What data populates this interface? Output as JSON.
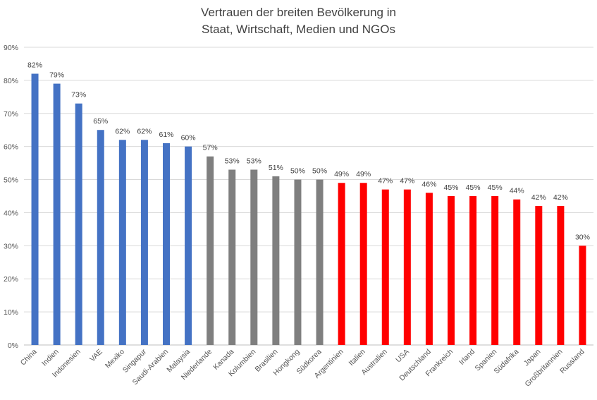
{
  "chart_data": {
    "type": "bar",
    "title_lines": [
      "Vertrauen der breiten Bevölkerung in",
      "Staat, Wirtschaft, Medien und NGOs"
    ],
    "xlabel": "",
    "ylabel": "",
    "ylim": [
      0,
      90
    ],
    "yticks": [
      0,
      10,
      20,
      30,
      40,
      50,
      60,
      70,
      80,
      90
    ],
    "ytick_labels": [
      "0%",
      "10%",
      "20%",
      "30%",
      "40%",
      "50%",
      "60%",
      "70%",
      "80%",
      "90%"
    ],
    "grid": true,
    "categories": [
      "China",
      "Indien",
      "Indonesien",
      "VAE",
      "Mexiko",
      "Singapur",
      "Saudi-Arabien",
      "Malaysia",
      "Niederlande",
      "Kanada",
      "Kolumbien",
      "Brasilien",
      "Hongkong",
      "Südkorea",
      "Argentinien",
      "Italien",
      "Australien",
      "USA",
      "Deutschland",
      "Frankreich",
      "Irland",
      "Spanien",
      "Südafrika",
      "Japan",
      "Großbritannien",
      "Russland"
    ],
    "values": [
      82,
      79,
      73,
      65,
      62,
      62,
      61,
      60,
      57,
      53,
      53,
      51,
      50,
      50,
      49,
      49,
      47,
      47,
      46,
      45,
      45,
      45,
      44,
      42,
      42,
      30
    ],
    "value_labels": [
      "82%",
      "79%",
      "73%",
      "65%",
      "62%",
      "62%",
      "61%",
      "60%",
      "57%",
      "53%",
      "53%",
      "51%",
      "50%",
      "50%",
      "49%",
      "49%",
      "47%",
      "47%",
      "46%",
      "45%",
      "45%",
      "45%",
      "44%",
      "42%",
      "42%",
      "30%"
    ],
    "groups": [
      "blue",
      "blue",
      "blue",
      "blue",
      "blue",
      "blue",
      "blue",
      "blue",
      "gray",
      "gray",
      "gray",
      "gray",
      "gray",
      "gray",
      "red",
      "red",
      "red",
      "red",
      "red",
      "red",
      "red",
      "red",
      "red",
      "red",
      "red",
      "red"
    ],
    "colors": {
      "blue": "#4472C4",
      "gray": "#7F7F7F",
      "red": "#FF0000",
      "grid": "#D9D9D9",
      "axis": "#BFBFBF"
    }
  }
}
